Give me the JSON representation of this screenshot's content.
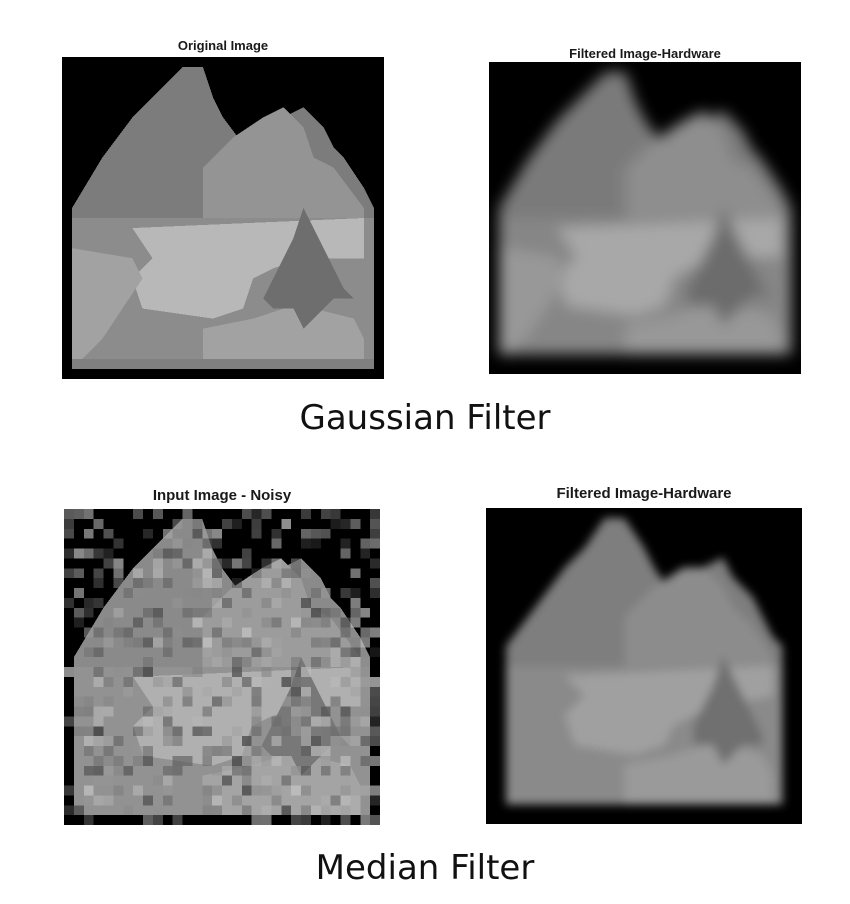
{
  "sections": {
    "gaussian": {
      "caption": "Gaussian Filter",
      "left_title": "Original Image",
      "right_title": "Filtered Image-Hardware"
    },
    "median": {
      "caption": "Median Filter",
      "left_title": "Input Image - Noisy",
      "right_title": "Filtered Image-Hardware"
    }
  },
  "colors": {
    "background": "#000000",
    "sky_frame": "#ffffff",
    "mountain_far": "#7a7a7a",
    "mountain_near": "#909090",
    "lake": "#b4b4b4",
    "meadow": "#a0a0a0",
    "tree": "#6a6a6a"
  }
}
